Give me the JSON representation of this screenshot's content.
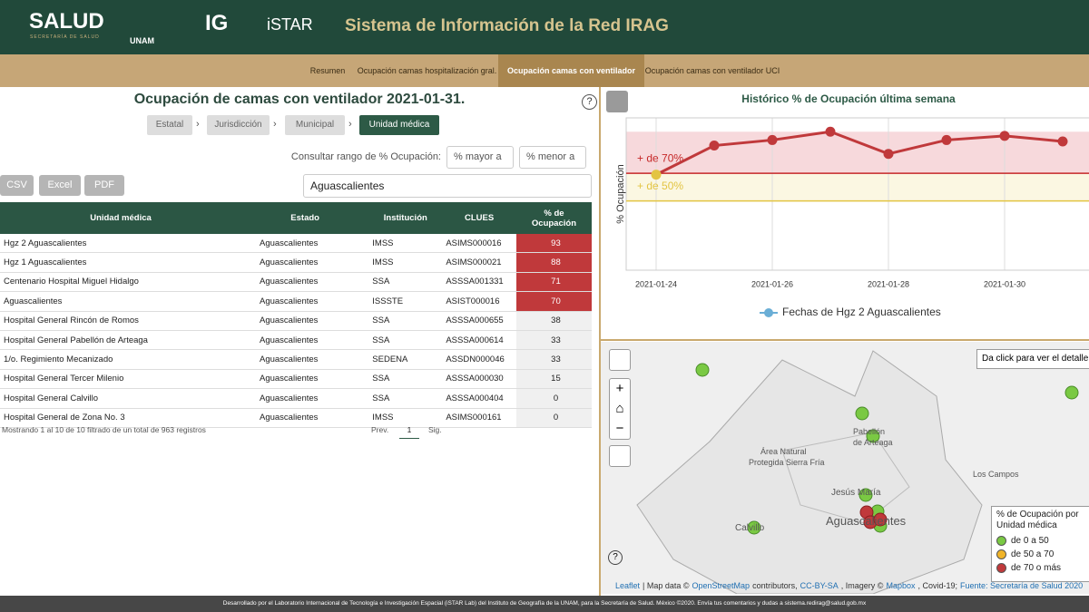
{
  "header": {
    "logo_salud": "SALUD",
    "logo_salud_sub": "SECRETARÍA DE SALUD",
    "logo_unam": "UNAM",
    "logo_ig": "IG",
    "logo_istar": "iSTAR",
    "title": "Sistema de Información de la Red IRAG"
  },
  "nav": {
    "tabs": [
      "Resumen",
      "Ocupación camas hospitalización gral.",
      "Ocupación camas con ventilador",
      "Ocupación camas con ventilador UCI"
    ],
    "active": 2
  },
  "panel": {
    "title": "Ocupación de camas con ventilador 2021-01-31.",
    "help": "?",
    "breadcrumb": [
      "Estatal",
      "Jurisdicción",
      "Municipal",
      "Unidad médica"
    ],
    "breadcrumb_active": 3,
    "range_label": "Consultar rango de % Ocupación:",
    "range_min_placeholder": "% mayor a",
    "range_max_placeholder": "% menor a",
    "export_buttons": [
      "CSV",
      "Excel",
      "PDF"
    ],
    "search_value": "Aguascalientes"
  },
  "table": {
    "columns": [
      "Unidad médica",
      "Estado",
      "Institución",
      "CLUES",
      "% de Ocupación"
    ],
    "rows": [
      [
        "Hgz 2 Aguascalientes",
        "Aguascalientes",
        "IMSS",
        "ASIMS000016",
        93
      ],
      [
        "Hgz 1 Aguascalientes",
        "Aguascalientes",
        "IMSS",
        "ASIMS000021",
        88
      ],
      [
        "Centenario Hospital Miguel Hidalgo",
        "Aguascalientes",
        "SSA",
        "ASSSA001331",
        71
      ],
      [
        "Aguascalientes",
        "Aguascalientes",
        "ISSSTE",
        "ASIST000016",
        70
      ],
      [
        "Hospital General Rincón de Romos",
        "Aguascalientes",
        "SSA",
        "ASSSA000655",
        38
      ],
      [
        "Hospital General Pabellón de Arteaga",
        "Aguascalientes",
        "SSA",
        "ASSSA000614",
        33
      ],
      [
        "1/o. Regimiento Mecanizado",
        "Aguascalientes",
        "SEDENA",
        "ASSDN000046",
        33
      ],
      [
        "Hospital General Tercer Milenio",
        "Aguascalientes",
        "SSA",
        "ASSSA000030",
        15
      ],
      [
        "Hospital General Calvillo",
        "Aguascalientes",
        "SSA",
        "ASSSA000404",
        0
      ],
      [
        "Hospital General de Zona No. 3",
        "Aguascalientes",
        "IMSS",
        "ASIMS000161",
        0
      ]
    ],
    "highlight_min": 70,
    "highlight_color": "#c0393b",
    "info": "Mostrando 1 al 10 de 10 filtrado de un total de 963 registros",
    "prev": "Prev.",
    "page": 1,
    "next": "Sig."
  },
  "chart_data": {
    "type": "line",
    "title": "Histórico % de Ocupación última semana",
    "y_label": "% Ocupación",
    "x": [
      "2021-01-24",
      "2021-01-25",
      "2021-01-26",
      "2021-01-27",
      "2021-01-28",
      "2021-01-29",
      "2021-01-30",
      "2021-01-31"
    ],
    "xticks": [
      "2021-01-24",
      "2021-01-26",
      "2021-01-28",
      "2021-01-30"
    ],
    "ylim": [
      0,
      110
    ],
    "grid": true,
    "series": [
      {
        "name": "Fechas de Hgz 2 Aguascalientes",
        "color": "#c0393b",
        "values": [
          69,
          90,
          94,
          100,
          84,
          94,
          97,
          93
        ]
      }
    ],
    "thresholds": [
      {
        "value": 70,
        "label": "+ de 70%",
        "color": "#c62828"
      },
      {
        "value": 50,
        "label": "+ de 50%",
        "color": "#e3c443"
      }
    ],
    "bands": [
      {
        "from": 70,
        "to": 100,
        "color": "#f7d9dc"
      },
      {
        "from": 50,
        "to": 70,
        "color": "#fbf7e2"
      }
    ],
    "point_colors": {
      "above": "#c0393b",
      "below": "#e3c443"
    },
    "legend_marker_color": "#6aaed6"
  },
  "map": {
    "tooltip": "Da click para ver el detalle",
    "zoom_in": "+",
    "zoom_out": "−",
    "help": "?",
    "labels": [
      "Área Natural",
      "Protegida Sierra Fría",
      "Pabellón",
      "de Arteaga",
      "Jesús María",
      "Aguascalientes",
      "Calvillo",
      "Los Campos"
    ],
    "legend_title": "% de Ocupación por Unidad médica",
    "legend": [
      {
        "label": "de 0 a 50",
        "color": "#7ac943"
      },
      {
        "label": "de 50 a 70",
        "color": "#f0b429"
      },
      {
        "label": "de 70 o más",
        "color": "#c0393b"
      }
    ],
    "attribution": [
      "Leaflet",
      "| Map data ©",
      "OpenStreetMap",
      "contributors,",
      "CC-BY-SA",
      ", Imagery ©",
      "Mapbox",
      ", Covid-19;",
      "Fuente: Secretaría de Salud 2020"
    ]
  },
  "footer": "Desarrollado por el Laboratorio Internacional de Tecnología e Investigación Espacial (iSTAR Lab) del Instituto de Geografía de la UNAM, para la Secretaría de Salud. México ©2020. Envía tus comentarios y dudas a sistema.redirag@salud.gob.mx"
}
